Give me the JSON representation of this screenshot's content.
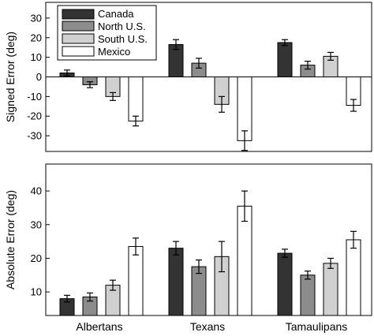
{
  "chart_data": [
    {
      "type": "bar",
      "ylabel": "Signed Error (deg)",
      "ylim": [
        -38,
        38
      ],
      "yticks": [
        -30,
        -20,
        -10,
        0,
        10,
        20,
        30
      ],
      "categories": [
        "Albertans",
        "Texans",
        "Tamaulipans"
      ],
      "legend": "top-left",
      "series": [
        {
          "name": "Canada",
          "color": "#333333",
          "values": [
            2,
            16.5,
            17.5
          ],
          "errors": [
            1.5,
            2.5,
            1.5
          ]
        },
        {
          "name": "North U.S.",
          "color": "#8c8c8c",
          "values": [
            -4,
            7,
            6
          ],
          "errors": [
            1.5,
            2.5,
            2
          ]
        },
        {
          "name": "South U.S.",
          "color": "#d0d0d0",
          "values": [
            -10,
            -14,
            10.5
          ],
          "errors": [
            2,
            4,
            2
          ]
        },
        {
          "name": "Mexico",
          "color": "#ffffff",
          "values": [
            -22.5,
            -32.5,
            -14.5
          ],
          "errors": [
            2.5,
            5,
            3
          ]
        }
      ]
    },
    {
      "type": "bar",
      "ylabel": "Absolute Error (deg)",
      "ylim": [
        3,
        48
      ],
      "yticks": [
        10,
        20,
        30,
        40
      ],
      "categories": [
        "Albertans",
        "Texans",
        "Tamaulipans"
      ],
      "series": [
        {
          "name": "Canada",
          "color": "#333333",
          "values": [
            8,
            23,
            21.5
          ],
          "errors": [
            1,
            2,
            1.2
          ]
        },
        {
          "name": "North U.S.",
          "color": "#8c8c8c",
          "values": [
            8.5,
            17.5,
            15
          ],
          "errors": [
            1.2,
            2,
            1.2
          ]
        },
        {
          "name": "South U.S.",
          "color": "#d0d0d0",
          "values": [
            12,
            20.5,
            18.5
          ],
          "errors": [
            1.5,
            4.5,
            1.5
          ]
        },
        {
          "name": "Mexico",
          "color": "#ffffff",
          "values": [
            23.5,
            35.5,
            25.5
          ],
          "errors": [
            2.5,
            4.5,
            2.5
          ]
        }
      ]
    }
  ]
}
